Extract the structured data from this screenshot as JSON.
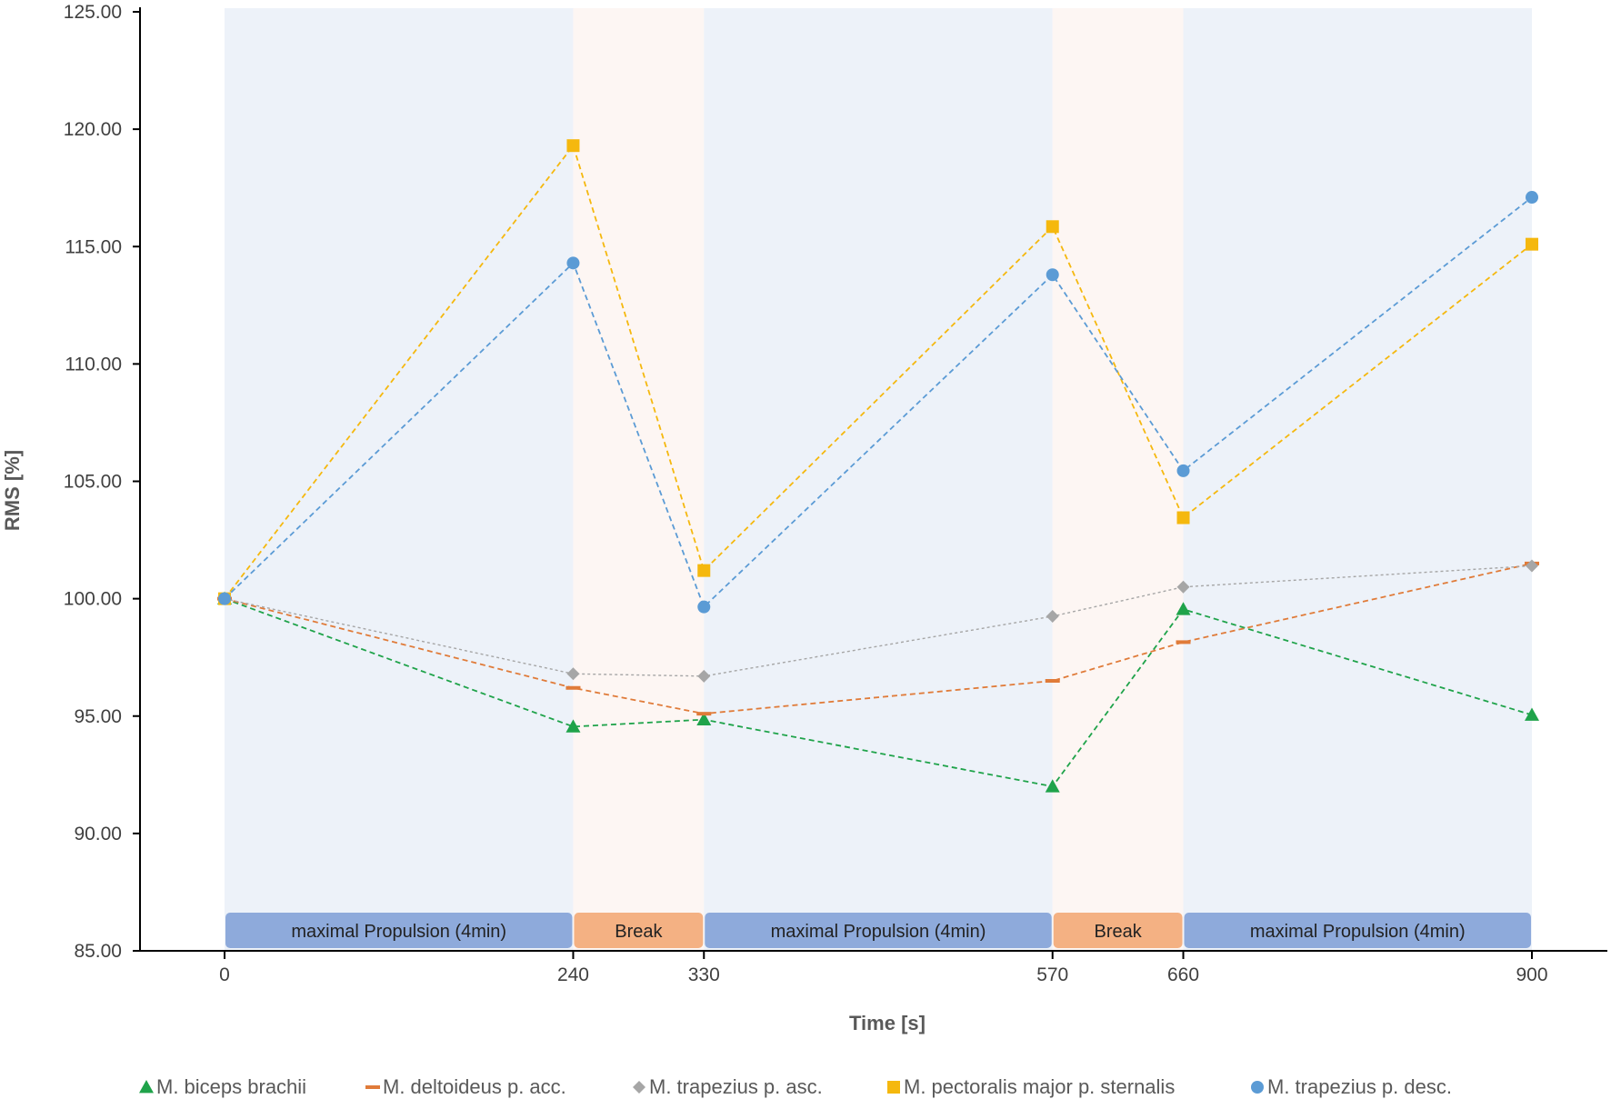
{
  "chart_data": {
    "type": "line",
    "title": "",
    "xlabel": "Time [s]",
    "ylabel": "RMS [%]",
    "ylim": [
      85,
      125
    ],
    "xlim": [
      0,
      900
    ],
    "yticks": [
      "85.00",
      "90.00",
      "95.00",
      "100.00",
      "105.00",
      "110.00",
      "115.00",
      "120.00",
      "125.00"
    ],
    "xticks": [
      "0",
      "240",
      "330",
      "570",
      "660",
      "900"
    ],
    "x": [
      0,
      240,
      330,
      570,
      660,
      900
    ],
    "grid": false,
    "legend_position": "bottom",
    "phases": [
      {
        "label": "maximal Propulsion (4min)",
        "start": 0,
        "end": 240,
        "kind": "propulsion"
      },
      {
        "label": "Break",
        "start": 240,
        "end": 330,
        "kind": "break"
      },
      {
        "label": "maximal Propulsion (4min)",
        "start": 330,
        "end": 570,
        "kind": "propulsion"
      },
      {
        "label": "Break",
        "start": 570,
        "end": 660,
        "kind": "break"
      },
      {
        "label": "maximal Propulsion (4min)",
        "start": 660,
        "end": 900,
        "kind": "propulsion"
      }
    ],
    "series": [
      {
        "name": "M. biceps brachii",
        "marker": "triangle",
        "color": "#1fa34a",
        "values": [
          100.0,
          94.55,
          94.85,
          92.0,
          99.55,
          95.05
        ]
      },
      {
        "name": "M. deltoideus p. acc.",
        "marker": "dash",
        "color": "#e07b39",
        "values": [
          100.0,
          96.2,
          95.1,
          96.5,
          98.15,
          101.5
        ]
      },
      {
        "name": "M. trapezius p. asc.",
        "marker": "diamond",
        "color": "#a6a6a6",
        "values": [
          100.0,
          96.8,
          96.7,
          99.25,
          100.5,
          101.4
        ]
      },
      {
        "name": "M. pectoralis major p. sternalis",
        "marker": "square",
        "color": "#f5b80e",
        "values": [
          100.0,
          119.3,
          101.2,
          115.85,
          103.45,
          115.1
        ]
      },
      {
        "name": "M. trapezius p. desc.",
        "marker": "circle",
        "color": "#5b9bd5",
        "values": [
          100.0,
          114.3,
          99.65,
          113.8,
          105.45,
          117.1
        ]
      }
    ],
    "colors": {
      "propulsion_band": "#edf2f9",
      "break_band": "#fdf6f3",
      "propulsion_box": "#8eaadb",
      "break_box": "#f4b183"
    }
  }
}
